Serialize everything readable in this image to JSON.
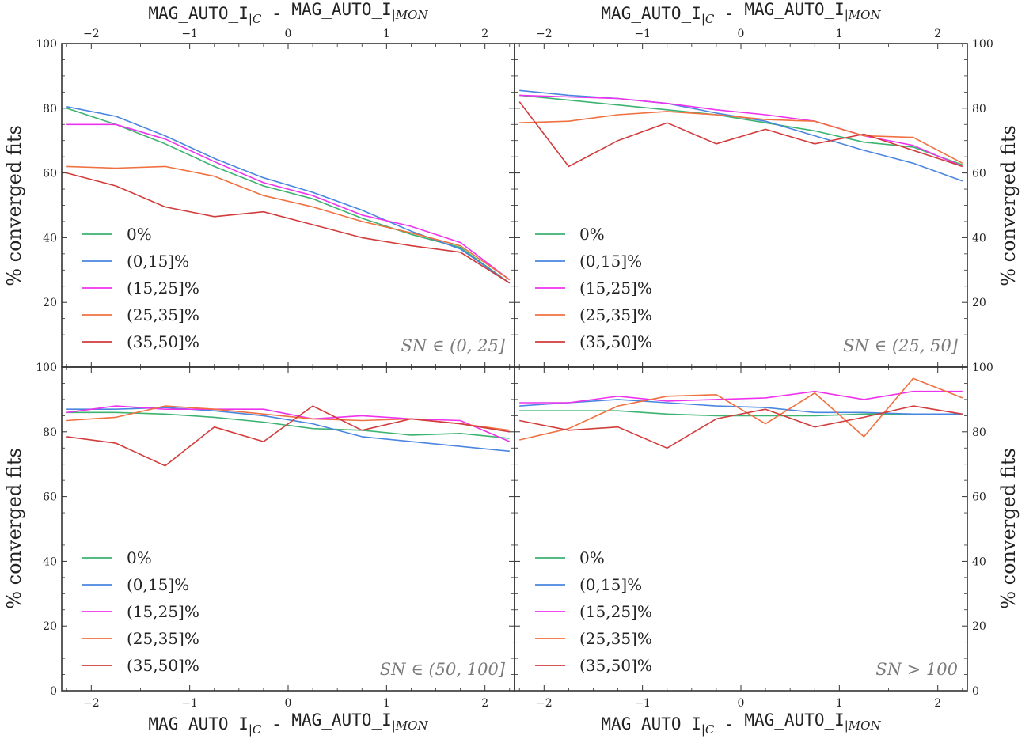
{
  "figure": {
    "mag_axis_title": "MAG_AUTO_I|C - MAG_AUTO_I|MON",
    "mag_axis_parts": {
      "left": "MAG_AUTO_I",
      "left_sub": "|C",
      "sep": " - ",
      "right": "MAG_AUTO_I",
      "right_sub": "|MON"
    },
    "ylabel": "% converged fits"
  },
  "chart_data": [
    {
      "type": "line",
      "panel": "top-left",
      "annotation": "SN ∈ (0, 25]",
      "xlim": [
        -2.3,
        2.3
      ],
      "ylim": [
        0,
        100
      ],
      "x_ticks": [
        -2,
        -1,
        0,
        1,
        2
      ],
      "y_ticks": [
        20,
        40,
        60,
        80,
        100
      ],
      "grid": false,
      "legend": "bottom-left",
      "x": [
        -2.25,
        -1.75,
        -1.25,
        -0.75,
        -0.25,
        0.25,
        0.75,
        1.25,
        1.75,
        2.25
      ],
      "series": [
        {
          "name": "0%",
          "color": "#3cb371",
          "values": [
            80,
            75,
            69,
            62,
            56,
            52,
            46,
            41,
            37,
            26
          ]
        },
        {
          "name": "(0,15]%",
          "color": "#4a86e0",
          "values": [
            80.5,
            77.5,
            71.5,
            64.5,
            58.5,
            54,
            48.5,
            42,
            36.5,
            26
          ]
        },
        {
          "name": "(15,25]%",
          "color": "#ee33ee",
          "values": [
            75,
            75,
            70.5,
            63.5,
            57,
            53,
            47,
            43.5,
            38.5,
            27
          ]
        },
        {
          "name": "(25,35]%",
          "color": "#f07040",
          "values": [
            62,
            61.5,
            62,
            59,
            53,
            49.5,
            45,
            41.5,
            37.5,
            27
          ]
        },
        {
          "name": "(35,50]%",
          "color": "#d23c3c",
          "values": [
            60,
            56,
            49.5,
            46.5,
            48,
            44,
            40,
            37.5,
            35.5,
            26
          ]
        }
      ]
    },
    {
      "type": "line",
      "panel": "top-right",
      "annotation": "SN ∈ (25, 50]",
      "xlim": [
        -2.3,
        2.3
      ],
      "ylim": [
        0,
        100
      ],
      "x_ticks": [
        -2,
        -1,
        0,
        1,
        2
      ],
      "y_ticks": [
        20,
        40,
        60,
        80,
        100
      ],
      "grid": false,
      "legend": "bottom-left",
      "x": [
        -2.25,
        -1.75,
        -1.25,
        -0.75,
        -0.25,
        0.25,
        0.75,
        1.25,
        1.75,
        2.25
      ],
      "series": [
        {
          "name": "0%",
          "color": "#3cb371",
          "values": [
            84,
            82.5,
            81,
            79.5,
            78,
            75.5,
            73,
            69.5,
            68,
            62.5
          ]
        },
        {
          "name": "(0,15]%",
          "color": "#4a86e0",
          "values": [
            85.5,
            84,
            83,
            81.5,
            78.5,
            76,
            71.5,
            67,
            63,
            57.5
          ]
        },
        {
          "name": "(15,25]%",
          "color": "#ee33ee",
          "values": [
            84,
            83.5,
            83,
            81.5,
            79.5,
            78,
            76,
            71.5,
            68.5,
            62
          ]
        },
        {
          "name": "(25,35]%",
          "color": "#f07040",
          "values": [
            75.5,
            76,
            78,
            79,
            78,
            76.5,
            76,
            71.5,
            71,
            63
          ]
        },
        {
          "name": "(35,50]%",
          "color": "#d23c3c",
          "values": [
            82,
            62,
            70,
            75.5,
            69,
            73.5,
            69,
            72,
            67,
            62
          ]
        }
      ]
    },
    {
      "type": "line",
      "panel": "bottom-left",
      "annotation": "SN ∈ (50, 100]",
      "xlim": [
        -2.3,
        2.3
      ],
      "ylim": [
        0,
        100
      ],
      "x_ticks": [
        -2,
        -1,
        0,
        1,
        2
      ],
      "y_ticks": [
        0,
        20,
        40,
        60,
        80,
        100
      ],
      "grid": false,
      "legend": "bottom-left",
      "x": [
        -2.25,
        -1.75,
        -1.25,
        -0.75,
        -0.25,
        0.25,
        0.75,
        1.25,
        1.75,
        2.25
      ],
      "series": [
        {
          "name": "0%",
          "color": "#3cb371",
          "values": [
            86,
            86,
            85.5,
            84.5,
            83,
            81,
            80.5,
            79,
            79.5,
            78
          ]
        },
        {
          "name": "(0,15]%",
          "color": "#4a86e0",
          "values": [
            87,
            87,
            87.5,
            86.5,
            85,
            82.5,
            78.5,
            77,
            75.5,
            74
          ]
        },
        {
          "name": "(15,25]%",
          "color": "#ee33ee",
          "values": [
            86,
            88,
            87,
            87,
            87,
            84,
            85,
            84,
            83.5,
            77
          ]
        },
        {
          "name": "(25,35]%",
          "color": "#f07040",
          "values": [
            83.5,
            84.5,
            88,
            87,
            85.5,
            84,
            83.5,
            84,
            82.5,
            80.5
          ]
        },
        {
          "name": "(35,50]%",
          "color": "#d23c3c",
          "values": [
            78.5,
            76.5,
            69.5,
            81.5,
            77,
            88,
            80.5,
            84,
            82.5,
            80
          ]
        }
      ]
    },
    {
      "type": "line",
      "panel": "bottom-right",
      "annotation": "SN > 100",
      "xlim": [
        -2.3,
        2.3
      ],
      "ylim": [
        0,
        100
      ],
      "x_ticks": [
        -2,
        -1,
        0,
        1,
        2
      ],
      "y_ticks": [
        0,
        20,
        40,
        60,
        80,
        100
      ],
      "grid": false,
      "legend": "bottom-left",
      "x": [
        -2.25,
        -1.75,
        -1.25,
        -0.75,
        -0.25,
        0.25,
        0.75,
        1.25,
        1.75,
        2.25
      ],
      "series": [
        {
          "name": "0%",
          "color": "#3cb371",
          "values": [
            86.5,
            86.5,
            86.5,
            85.5,
            85,
            85,
            85,
            85.5,
            85.5,
            85.5
          ]
        },
        {
          "name": "(0,15]%",
          "color": "#4a86e0",
          "values": [
            88,
            89,
            90,
            89,
            88,
            87.5,
            86,
            86,
            85.5,
            85.5
          ]
        },
        {
          "name": "(15,25]%",
          "color": "#ee33ee",
          "values": [
            89,
            89,
            91,
            89.5,
            90,
            90.5,
            92.5,
            90,
            92.5,
            92.5
          ]
        },
        {
          "name": "(25,35]%",
          "color": "#f07040",
          "values": [
            77.5,
            81,
            88,
            91,
            91.5,
            82.5,
            92,
            78.5,
            96.5,
            90.5
          ]
        },
        {
          "name": "(35,50]%",
          "color": "#d23c3c",
          "values": [
            83.5,
            80.5,
            81.5,
            75,
            84,
            87,
            81.5,
            84.5,
            88,
            85.5
          ]
        }
      ]
    }
  ]
}
